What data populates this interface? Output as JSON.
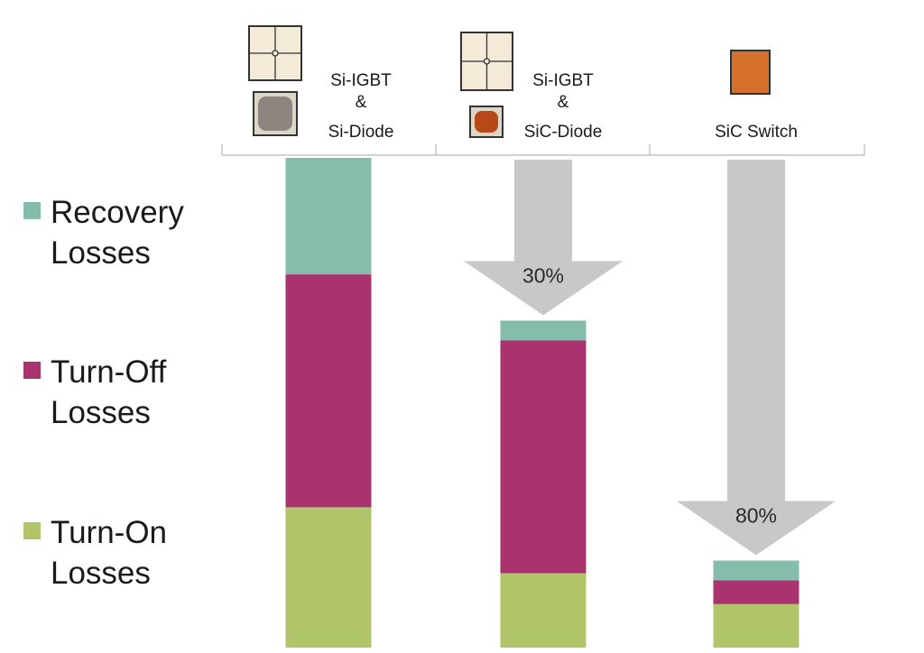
{
  "chart_data": {
    "type": "bar",
    "stacked": true,
    "categories": [
      {
        "line1": "Si-IGBT",
        "line2": "&",
        "line3": "Si-Diode"
      },
      {
        "line1": "Si-IGBT",
        "line2": "&",
        "line3": "SiC-Diode"
      },
      {
        "line1": "",
        "line2": "",
        "line3": "SiC Switch"
      }
    ],
    "series": [
      {
        "name": "Turn-On Losses",
        "legend_line1": "Turn-On",
        "legend_line2": "Losses",
        "color": "#b0c46a",
        "values": [
          100,
          53,
          31
        ]
      },
      {
        "name": "Turn-Off Losses",
        "legend_line1": "Turn-Off",
        "legend_line2": "Losses",
        "color": "#a8336e",
        "values": [
          166,
          166,
          17
        ]
      },
      {
        "name": "Recovery Losses",
        "legend_line1": "Recovery",
        "legend_line2": "Losses",
        "color": "#86bcab",
        "values": [
          83,
          14,
          14
        ]
      }
    ],
    "reductions": [
      {
        "from_category": 0,
        "to_category": 1,
        "label": "30%"
      },
      {
        "from_category": 0,
        "to_category": 2,
        "label": "80%"
      }
    ],
    "ylim": [
      0,
      349
    ],
    "grid": false,
    "legend_position": "left",
    "device_icons": [
      {
        "igbt_icon": "igbt-chip-icon",
        "diode_icon": "si-diode-chip-icon",
        "diode_color": "#8c8580"
      },
      {
        "igbt_icon": "igbt-chip-icon",
        "diode_icon": "sic-diode-chip-icon",
        "diode_color": "#b8471a"
      },
      {
        "switch_icon": "sic-switch-chip-icon",
        "switch_color": "#d56f2c"
      }
    ]
  }
}
